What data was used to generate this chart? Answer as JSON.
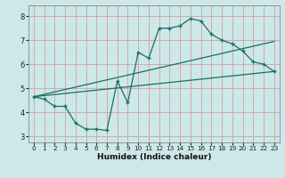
{
  "title": "",
  "xlabel": "Humidex (Indice chaleur)",
  "bg_color": "#cce8e8",
  "line_color": "#1a6e64",
  "xlim": [
    -0.5,
    23.5
  ],
  "ylim": [
    2.75,
    8.45
  ],
  "xticks": [
    0,
    1,
    2,
    3,
    4,
    5,
    6,
    7,
    8,
    9,
    10,
    11,
    12,
    13,
    14,
    15,
    16,
    17,
    18,
    19,
    20,
    21,
    22,
    23
  ],
  "yticks": [
    3,
    4,
    5,
    6,
    7,
    8
  ],
  "line1_x": [
    0,
    1,
    2,
    3,
    4,
    5,
    6,
    7,
    8,
    9,
    10,
    11,
    12,
    13,
    14,
    15,
    16,
    17,
    18,
    19,
    20,
    21,
    22,
    23
  ],
  "line1_y": [
    4.65,
    4.55,
    4.25,
    4.25,
    3.55,
    3.3,
    3.3,
    3.25,
    5.3,
    4.4,
    6.5,
    6.25,
    7.5,
    7.5,
    7.6,
    7.9,
    7.8,
    7.25,
    7.0,
    6.85,
    6.55,
    6.1,
    6.0,
    5.7
  ],
  "line2_x": [
    0,
    23
  ],
  "line2_y": [
    4.65,
    6.95
  ],
  "line3_x": [
    0,
    23
  ],
  "line3_y": [
    4.65,
    5.7
  ],
  "grid_color": "#d4a0a0",
  "spine_color": "#888888"
}
